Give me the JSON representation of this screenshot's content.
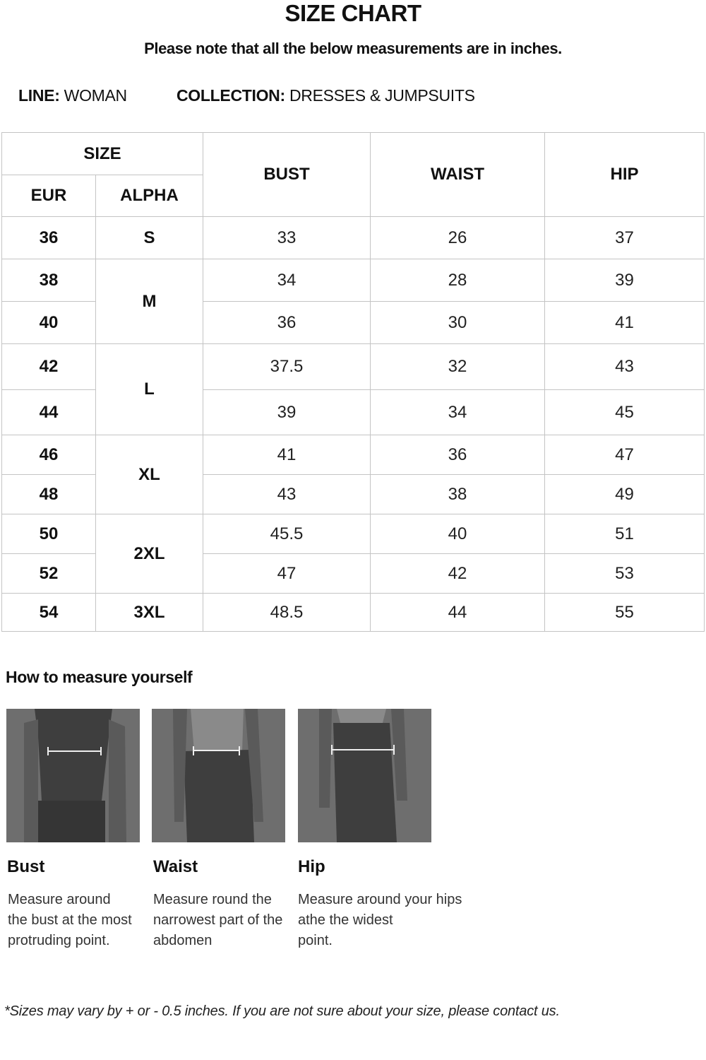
{
  "title": "SIZE CHART",
  "note": "Please note that all the below measurements are in inches.",
  "meta": {
    "line_label": "LINE:",
    "line_value": "WOMAN",
    "collection_label": "COLLECTION:",
    "collection_value": "DRESSES & JUMPSUITS"
  },
  "table": {
    "headers": {
      "size": "SIZE",
      "eur": "EUR",
      "alpha": "ALPHA",
      "bust": "BUST",
      "waist": "WAIST",
      "hip": "HIP"
    },
    "rows": [
      {
        "eur": "36",
        "alpha": "S",
        "bust": "33",
        "waist": "26",
        "hip": "37"
      },
      {
        "eur": "38",
        "alpha": "M",
        "bust": "34",
        "waist": "28",
        "hip": "39"
      },
      {
        "eur": "40",
        "alpha": "M",
        "bust": "36",
        "waist": "30",
        "hip": "41"
      },
      {
        "eur": "42",
        "alpha": "L",
        "bust": "37.5",
        "waist": "32",
        "hip": "43"
      },
      {
        "eur": "44",
        "alpha": "L",
        "bust": "39",
        "waist": "34",
        "hip": "45"
      },
      {
        "eur": "46",
        "alpha": "XL",
        "bust": "41",
        "waist": "36",
        "hip": "47"
      },
      {
        "eur": "48",
        "alpha": "XL",
        "bust": "43",
        "waist": "38",
        "hip": "49"
      },
      {
        "eur": "50",
        "alpha": "2XL",
        "bust": "45.5",
        "waist": "40",
        "hip": "51"
      },
      {
        "eur": "52",
        "alpha": "2XL",
        "bust": "47",
        "waist": "42",
        "hip": "53"
      },
      {
        "eur": "54",
        "alpha": "3XL",
        "bust": "48.5",
        "waist": "44",
        "hip": "55"
      }
    ]
  },
  "how_to": {
    "heading": "How to measure yourself",
    "items": [
      {
        "label": "Bust",
        "text": "Measure around\nthe bust at the most\nprotruding point."
      },
      {
        "label": "Waist",
        "text": "Measure round the\nnarrowest part of the\nabdomen"
      },
      {
        "label": "Hip",
        "text": "Measure around your hips\nathe the widest\npoint."
      }
    ]
  },
  "footer": "*Sizes may vary by + or - 0.5 inches. If you are not sure about your size, please contact us.",
  "colors": {
    "photo_bg": "#6e6e6e",
    "grid": "#c4c4c4"
  }
}
